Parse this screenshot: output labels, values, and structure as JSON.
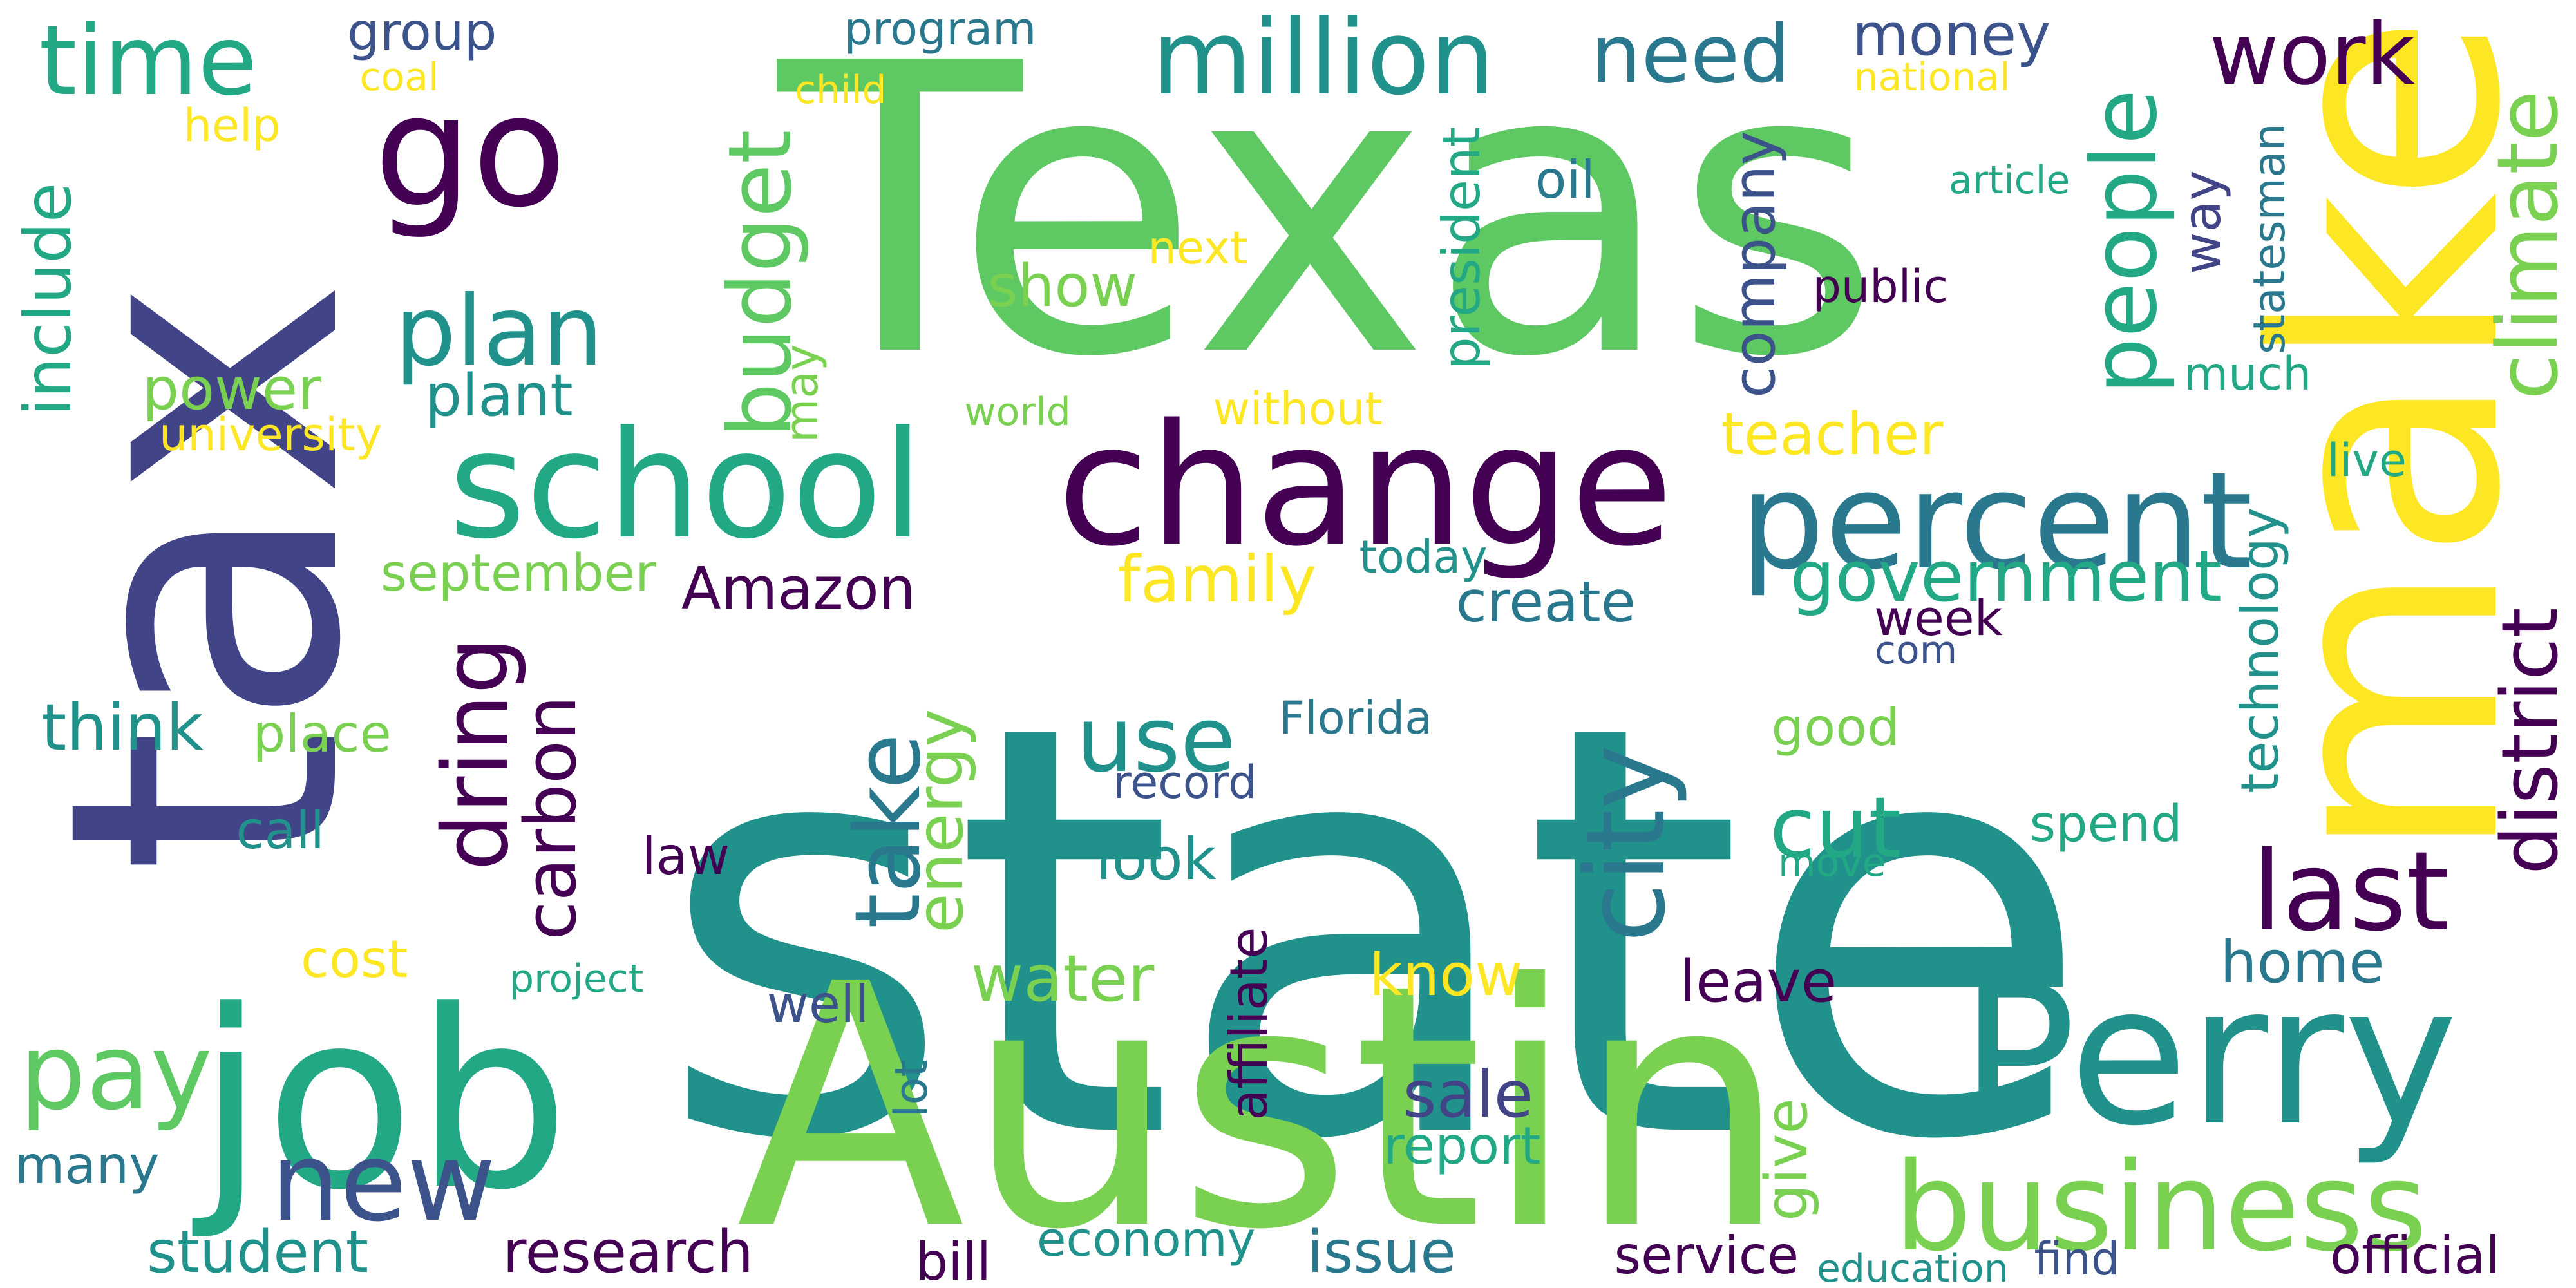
{
  "palette": {
    "c1": "#440154",
    "c2": "#414487",
    "c3": "#2a788e",
    "c4": "#22a884",
    "c5": "#7ad151",
    "c6": "#fde725",
    "c7": "#3b528b",
    "c8": "#21918c",
    "c9": "#5ec962"
  },
  "words": [
    {
      "text": "state",
      "color": "c8",
      "rot": 0
    },
    {
      "text": "Texas",
      "color": "c9",
      "rot": 0
    },
    {
      "text": "tax",
      "color": "c2",
      "rot": -90
    },
    {
      "text": "make",
      "color": "c6",
      "rot": -90
    },
    {
      "text": "Austin",
      "color": "c5",
      "rot": 0
    },
    {
      "text": "Perry",
      "color": "c8",
      "rot": 0
    },
    {
      "text": "job",
      "color": "c4",
      "rot": 0
    },
    {
      "text": "change",
      "color": "c1",
      "rot": 0
    },
    {
      "text": "school",
      "color": "c4",
      "rot": 0
    },
    {
      "text": "go",
      "color": "c1",
      "rot": 0
    },
    {
      "text": "percent",
      "color": "c3",
      "rot": 0
    },
    {
      "text": "business",
      "color": "c5",
      "rot": 0
    },
    {
      "text": "million",
      "color": "c8",
      "rot": 0
    },
    {
      "text": "district",
      "color": "c1",
      "rot": -90
    },
    {
      "text": "climate",
      "color": "c5",
      "rot": -90
    },
    {
      "text": "people",
      "color": "c4",
      "rot": -90
    },
    {
      "text": "last",
      "color": "c1",
      "rot": 0
    },
    {
      "text": "city",
      "color": "c3",
      "rot": -90
    },
    {
      "text": "new",
      "color": "c7",
      "rot": 0
    },
    {
      "text": "take",
      "color": "c3",
      "rot": -90
    },
    {
      "text": "use",
      "color": "c8",
      "rot": 0
    },
    {
      "text": "cut",
      "color": "c4",
      "rot": 0
    },
    {
      "text": "plan",
      "color": "c8",
      "rot": 0
    },
    {
      "text": "budget",
      "color": "c9",
      "rot": -90
    },
    {
      "text": "dring",
      "color": "c1",
      "rot": -90
    },
    {
      "text": "work",
      "color": "c1",
      "rot": 0
    },
    {
      "text": "need",
      "color": "c3",
      "rot": 0
    },
    {
      "text": "time",
      "color": "c4",
      "rot": 0
    },
    {
      "text": "include",
      "color": "c4",
      "rot": -90
    },
    {
      "text": "pay",
      "color": "c9",
      "rot": 0
    },
    {
      "text": "carbon",
      "color": "c1",
      "rot": -90
    },
    {
      "text": "government",
      "color": "c4",
      "rot": 0
    },
    {
      "text": "Amazon",
      "color": "c1",
      "rot": 0
    },
    {
      "text": "family",
      "color": "c6",
      "rot": 0
    },
    {
      "text": "research",
      "color": "c1",
      "rot": 0
    },
    {
      "text": "student",
      "color": "c8",
      "rot": 0
    },
    {
      "text": "service",
      "color": "c1",
      "rot": 0
    },
    {
      "text": "water",
      "color": "c5",
      "rot": 0
    },
    {
      "text": "think",
      "color": "c8",
      "rot": 0
    },
    {
      "text": "energy",
      "color": "c5",
      "rot": -90
    },
    {
      "text": "teacher",
      "color": "c6",
      "rot": 0
    },
    {
      "text": "company",
      "color": "c7",
      "rot": -90
    },
    {
      "text": "plant",
      "color": "c8",
      "rot": 0
    },
    {
      "text": "power",
      "color": "c5",
      "rot": 0
    },
    {
      "text": "money",
      "color": "c7",
      "rot": 0
    },
    {
      "text": "group",
      "color": "c7",
      "rot": 0
    },
    {
      "text": "program",
      "color": "c3",
      "rot": 0
    },
    {
      "text": "home",
      "color": "c3",
      "rot": 0
    },
    {
      "text": "sale",
      "color": "c2",
      "rot": 0
    },
    {
      "text": "issue",
      "color": "c3",
      "rot": 0
    },
    {
      "text": "look",
      "color": "c8",
      "rot": 0
    },
    {
      "text": "show",
      "color": "c5",
      "rot": 0
    },
    {
      "text": "leave",
      "color": "c1",
      "rot": 0
    },
    {
      "text": "know",
      "color": "c6",
      "rot": 0
    },
    {
      "text": "way",
      "color": "c2",
      "rot": -90
    },
    {
      "text": "many",
      "color": "c3",
      "rot": 0
    },
    {
      "text": "give",
      "color": "c5",
      "rot": -90
    },
    {
      "text": "affiliate",
      "color": "c1",
      "rot": -90
    },
    {
      "text": "report",
      "color": "c4",
      "rot": 0
    },
    {
      "text": "economy",
      "color": "c8",
      "rot": 0
    },
    {
      "text": "create",
      "color": "c3",
      "rot": 0
    },
    {
      "text": "call",
      "color": "c8",
      "rot": 0
    },
    {
      "text": "may",
      "color": "c5",
      "rot": -90
    },
    {
      "text": "good",
      "color": "c5",
      "rot": 0
    },
    {
      "text": "spend",
      "color": "c4",
      "rot": 0
    },
    {
      "text": "place",
      "color": "c5",
      "rot": 0
    },
    {
      "text": "september",
      "color": "c5",
      "rot": 0
    },
    {
      "text": "cost",
      "color": "c6",
      "rot": 0
    },
    {
      "text": "bill",
      "color": "c1",
      "rot": 0
    },
    {
      "text": "much",
      "color": "c4",
      "rot": 0
    },
    {
      "text": "week",
      "color": "c1",
      "rot": 0
    },
    {
      "text": "president",
      "color": "c4",
      "rot": -90
    },
    {
      "text": "oil",
      "color": "c3",
      "rot": 0
    },
    {
      "text": "well",
      "color": "c7",
      "rot": 0
    },
    {
      "text": "law",
      "color": "c1",
      "rot": 0
    },
    {
      "text": "official",
      "color": "c1",
      "rot": 0
    },
    {
      "text": "technology",
      "color": "c8",
      "rot": -90
    },
    {
      "text": "Florida",
      "color": "c3",
      "rot": 0
    },
    {
      "text": "record",
      "color": "c7",
      "rot": 0
    },
    {
      "text": "find",
      "color": "c7",
      "rot": 0
    },
    {
      "text": "education",
      "color": "c8",
      "rot": 0
    },
    {
      "text": "statesman",
      "color": "c3",
      "rot": -90
    },
    {
      "text": "public",
      "color": "c1",
      "rot": 0
    },
    {
      "text": "today",
      "color": "c8",
      "rot": 0
    },
    {
      "text": "next",
      "color": "c6",
      "rot": 0
    },
    {
      "text": "article",
      "color": "c4",
      "rot": 0
    },
    {
      "text": "without",
      "color": "c6",
      "rot": 0
    },
    {
      "text": "live",
      "color": "c4",
      "rot": 0
    },
    {
      "text": "university",
      "color": "c6",
      "rot": 0
    },
    {
      "text": "world",
      "color": "c5",
      "rot": 0
    },
    {
      "text": "help",
      "color": "c6",
      "rot": 0
    },
    {
      "text": "coal",
      "color": "c6",
      "rot": 0
    },
    {
      "text": "child",
      "color": "c6",
      "rot": 0
    },
    {
      "text": "national",
      "color": "c6",
      "rot": 0
    },
    {
      "text": "project",
      "color": "c4",
      "rot": 0
    },
    {
      "text": "move",
      "color": "c4",
      "rot": 0
    },
    {
      "text": "lot",
      "color": "c3",
      "rot": -90
    },
    {
      "text": "com",
      "color": "c7",
      "rot": 0
    }
  ]
}
